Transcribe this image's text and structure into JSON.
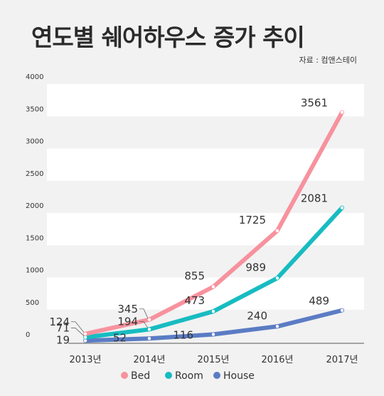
{
  "header": {
    "title": "연도별 쉐어하우스 증가 추이",
    "source": "자료 : 컴앤스테이"
  },
  "chart_data": {
    "type": "line",
    "title": "연도별 쉐어하우스 증가 추이",
    "xlabel": "",
    "ylabel": "",
    "x": [
      "2013년",
      "2014년",
      "2015년",
      "2016년",
      "2017년"
    ],
    "ylim": [
      0,
      4000
    ],
    "yticks": [
      0,
      500,
      1000,
      1500,
      2000,
      2500,
      3000,
      3500,
      4000
    ],
    "grid": "alternating horizontal bands",
    "legend": "bottom",
    "series": [
      {
        "name": "Bed",
        "color": "#f7929e",
        "values": [
          124,
          345,
          855,
          1725,
          3561
        ]
      },
      {
        "name": "Room",
        "color": "#17bcc1",
        "values": [
          71,
          194,
          473,
          989,
          2081
        ]
      },
      {
        "name": "House",
        "color": "#5b7cc4",
        "values": [
          19,
          52,
          116,
          240,
          489
        ]
      }
    ]
  }
}
